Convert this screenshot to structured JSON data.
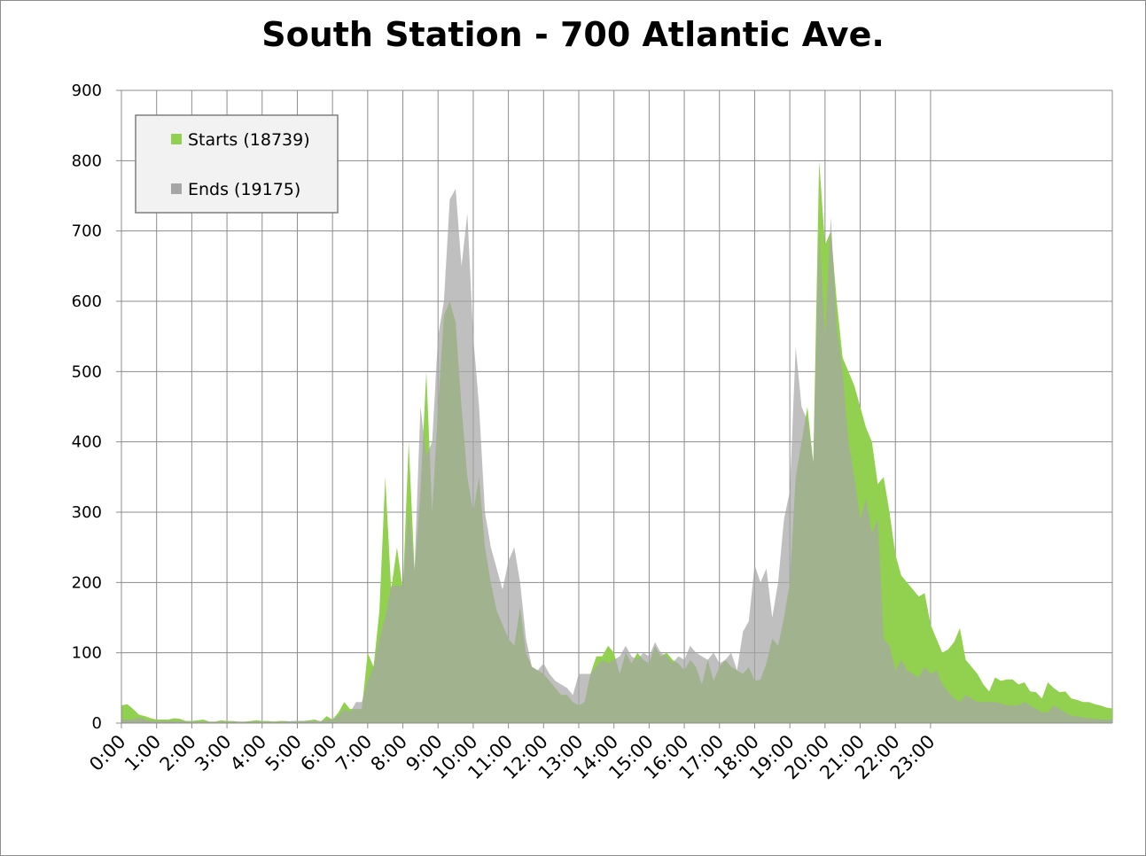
{
  "chart_data": {
    "type": "area",
    "title": "South Station - 700 Atlantic Ave.",
    "xlabel": "",
    "ylabel": "",
    "ylim": [
      0,
      900
    ],
    "y_ticks": [
      "0",
      "100",
      "200",
      "300",
      "400",
      "500",
      "600",
      "700",
      "800",
      "900"
    ],
    "x_ticks": [
      "0:00",
      "1:00",
      "2:00",
      "3:00",
      "4:00",
      "5:00",
      "6:00",
      "7:00",
      "8:00",
      "9:00",
      "10:00",
      "11:00",
      "12:00",
      "13:00",
      "14:00",
      "15:00",
      "16:00",
      "17:00",
      "18:00",
      "19:00",
      "20:00",
      "21:00",
      "22:00",
      "23:00"
    ],
    "interval_minutes": 10,
    "grid": true,
    "legend_position": "top-left",
    "series": [
      {
        "name": "Starts (18739)",
        "color": "#92d050",
        "values": [
          25,
          27,
          20,
          12,
          10,
          7,
          5,
          5,
          5,
          7,
          6,
          3,
          3,
          4,
          5,
          2,
          2,
          4,
          3,
          3,
          2,
          2,
          3,
          4,
          3,
          3,
          2,
          3,
          3,
          2,
          3,
          3,
          4,
          5,
          2,
          10,
          5,
          15,
          30,
          20,
          20,
          20,
          100,
          80,
          160,
          350,
          190,
          250,
          190,
          400,
          215,
          330,
          500,
          300,
          450,
          580,
          600,
          570,
          450,
          350,
          300,
          350,
          250,
          200,
          160,
          140,
          120,
          110,
          165,
          100,
          80,
          75,
          70,
          60,
          50,
          40,
          40,
          30,
          25,
          30,
          70,
          95,
          95,
          110,
          100,
          70,
          100,
          85,
          100,
          90,
          85,
          110,
          95,
          100,
          90,
          85,
          75,
          90,
          80,
          55,
          90,
          60,
          80,
          90,
          80,
          75,
          70,
          80,
          60,
          62,
          85,
          120,
          110,
          150,
          200,
          350,
          400,
          450,
          370,
          800,
          680,
          700,
          600,
          520,
          500,
          480,
          450,
          420,
          400,
          340,
          350,
          300,
          240,
          210,
          200,
          190,
          180,
          185,
          140,
          120,
          100,
          105,
          115,
          135,
          90,
          80,
          70,
          55,
          45,
          65,
          60,
          62,
          62,
          55,
          58,
          45,
          44,
          35,
          58,
          50,
          44,
          45,
          35,
          33,
          30,
          30,
          27,
          25,
          22,
          21
        ]
      },
      {
        "name": "Ends (19175)",
        "color": "#a6a6a6",
        "values": [
          5,
          5,
          5,
          8,
          5,
          3,
          3,
          3,
          3,
          3,
          3,
          2,
          2,
          2,
          2,
          2,
          2,
          2,
          2,
          2,
          2,
          2,
          2,
          2,
          2,
          2,
          2,
          2,
          2,
          3,
          3,
          3,
          3,
          3,
          3,
          5,
          5,
          10,
          20,
          15,
          30,
          30,
          60,
          80,
          120,
          150,
          195,
          195,
          195,
          300,
          220,
          450,
          380,
          400,
          550,
          600,
          745,
          760,
          650,
          725,
          550,
          450,
          300,
          250,
          220,
          190,
          230,
          250,
          200,
          120,
          80,
          75,
          85,
          70,
          60,
          55,
          50,
          40,
          70,
          70,
          70,
          80,
          90,
          85,
          90,
          95,
          110,
          95,
          90,
          100,
          95,
          115,
          100,
          95,
          85,
          95,
          90,
          110,
          100,
          95,
          90,
          100,
          85,
          90,
          100,
          75,
          130,
          145,
          225,
          200,
          220,
          150,
          200,
          290,
          330,
          535,
          450,
          430,
          370,
          700,
          550,
          720,
          560,
          500,
          400,
          350,
          290,
          320,
          270,
          290,
          120,
          110,
          75,
          90,
          75,
          70,
          65,
          80,
          70,
          75,
          55,
          45,
          35,
          30,
          40,
          35,
          30,
          30,
          30,
          30,
          28,
          25,
          25,
          25,
          30,
          25,
          20,
          15,
          15,
          25,
          20,
          15,
          10,
          10,
          8,
          7,
          6,
          5,
          5,
          5
        ]
      }
    ]
  }
}
